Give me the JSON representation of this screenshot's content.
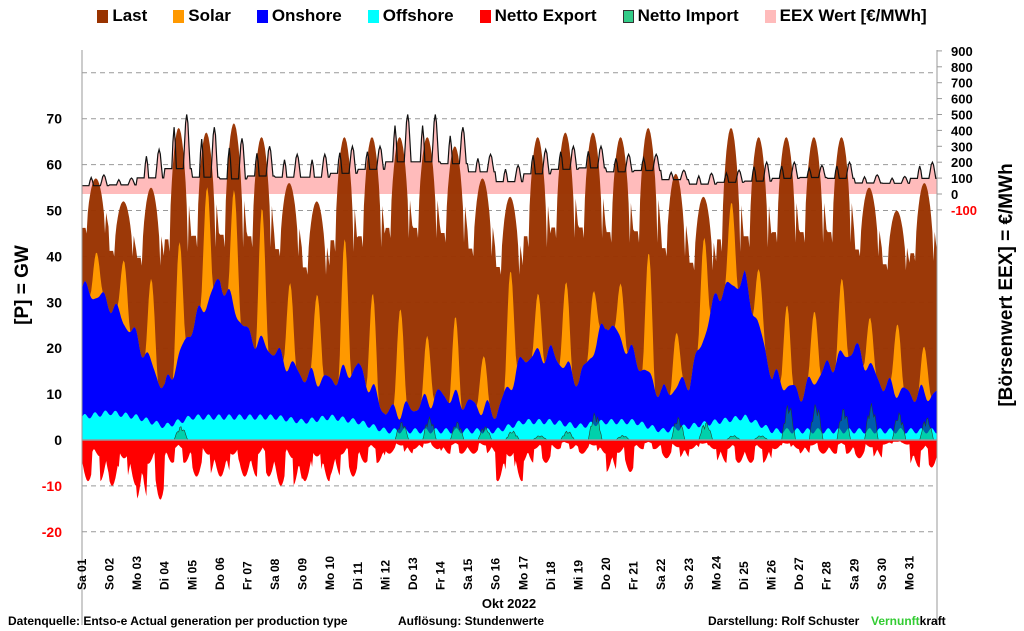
{
  "legend": [
    {
      "label": "Last",
      "color": "#993300"
    },
    {
      "label": "Solar",
      "color": "#ff9900"
    },
    {
      "label": "Onshore",
      "color": "#0000ff"
    },
    {
      "label": "Offshore",
      "color": "#00ffff"
    },
    {
      "label": "Netto Export",
      "color": "#ff0000"
    },
    {
      "label": "Netto Import",
      "color": "#33cc88"
    },
    {
      "label": "EEX Wert [€/MWh]",
      "color": "#ffbbbb"
    }
  ],
  "footer": {
    "source": "Datenquelle: Entso-e  Actual generation per production type",
    "resolution": "Auflösung: Stundenwerte",
    "author": "Darstellung:  Rolf Schuster",
    "brand_green": "Vernunft",
    "brand_black": "kraft"
  },
  "chart_data": {
    "type": "area",
    "xlabel": "Okt 2022",
    "ylabel": "[P]  =  GW",
    "y2label": "[Börsenwert  EEX]  =  €/MWh",
    "ylim": [
      -20,
      80
    ],
    "y2lim": [
      -100,
      900
    ],
    "yticks": [
      "70",
      "60",
      "50",
      "40",
      "30",
      "20",
      "10",
      "0",
      "-10",
      "-20"
    ],
    "y2ticks": [
      "900",
      "800",
      "700",
      "600",
      "500",
      "400",
      "300",
      "200",
      "100",
      "0",
      "-100"
    ],
    "grid": true,
    "legend_position": "top",
    "categories": [
      "Sa 01",
      "So 02",
      "Mo 03",
      "Di 04",
      "Mi 05",
      "Do 06",
      "Fr 07",
      "Sa 08",
      "So 09",
      "Mo 10",
      "Di 11",
      "Mi 12",
      "Do 13",
      "Fr 14",
      "Sa 15",
      "So 16",
      "Mo 17",
      "Di 18",
      "Mi 19",
      "Do 20",
      "Fr 21",
      "Sa 22",
      "So 23",
      "Mo 24",
      "Di 25",
      "Mi 26",
      "Do 27",
      "Fr 28",
      "Sa 29",
      "So 30",
      "Mo 31"
    ],
    "series": [
      {
        "name": "Last",
        "unit": "GW",
        "daily_min": [
          45,
          40,
          38,
          41,
          42,
          42,
          42,
          40,
          36,
          41,
          42,
          44,
          44,
          43,
          40,
          36,
          42,
          44,
          44,
          43,
          43,
          40,
          37,
          41,
          42,
          43,
          43,
          43,
          40,
          37,
          39
        ],
        "daily_max": [
          57,
          52,
          55,
          68,
          67,
          69,
          66,
          56,
          52,
          66,
          66,
          66,
          66,
          64,
          57,
          53,
          66,
          67,
          67,
          66,
          68,
          58,
          53,
          68,
          66,
          66,
          66,
          66,
          55,
          50,
          56
        ]
      },
      {
        "name": "Solar",
        "unit": "GW",
        "daily_peak": [
          10,
          14,
          18,
          24,
          26,
          26,
          28,
          18,
          20,
          28,
          20,
          24,
          14,
          16,
          12,
          26,
          12,
          18,
          14,
          12,
          26,
          12,
          22,
          18,
          12,
          18,
          16,
          16,
          10,
          16,
          10
        ]
      },
      {
        "name": "Onshore",
        "unit": "GW",
        "daily_mean": [
          28,
          24,
          17,
          8,
          20,
          30,
          18,
          14,
          10,
          8,
          12,
          4,
          5,
          8,
          6,
          4,
          14,
          15,
          10,
          22,
          14,
          8,
          10,
          28,
          30,
          12,
          8,
          14,
          18,
          10,
          8
        ]
      },
      {
        "name": "Offshore",
        "unit": "GW",
        "daily_mean": [
          5,
          6,
          5,
          3,
          5,
          5,
          5,
          5,
          4,
          5,
          4,
          2,
          2,
          2,
          2,
          2,
          4,
          4,
          3,
          4,
          4,
          2,
          3,
          4,
          5,
          2,
          2,
          2,
          2,
          2,
          2
        ]
      },
      {
        "name": "Netto Export",
        "unit": "GW",
        "daily_min": [
          -9,
          -10,
          -13,
          -5,
          -8,
          -8,
          -8,
          -10,
          -9,
          -8,
          -5,
          -3,
          -2,
          -3,
          -3,
          -9,
          -5,
          -2,
          -3,
          -7,
          -2,
          -4,
          -2,
          -5,
          -5,
          -2,
          -3,
          -3,
          -4,
          -1,
          -6
        ]
      },
      {
        "name": "Netto Import",
        "unit": "GW",
        "daily_max": [
          0,
          0,
          0,
          3,
          0,
          0,
          0,
          0,
          0,
          0,
          0,
          4,
          5,
          4,
          3,
          2,
          1,
          2,
          6,
          1,
          0,
          5,
          4,
          1,
          1,
          8,
          8,
          7,
          8,
          6,
          5
        ]
      },
      {
        "name": "EEX Wert [€/MWh]",
        "unit": "€/MWh",
        "daily_min": [
          40,
          50,
          70,
          100,
          50,
          50,
          80,
          80,
          80,
          100,
          130,
          150,
          150,
          150,
          120,
          60,
          100,
          130,
          140,
          120,
          130,
          80,
          50,
          60,
          60,
          80,
          90,
          80,
          60,
          60,
          80
        ],
        "daily_max": [
          120,
          100,
          280,
          500,
          420,
          350,
          300,
          250,
          250,
          300,
          300,
          500,
          500,
          420,
          250,
          180,
          280,
          300,
          300,
          250,
          250,
          150,
          130,
          150,
          200,
          200,
          180,
          200,
          120,
          110,
          200
        ]
      }
    ]
  }
}
